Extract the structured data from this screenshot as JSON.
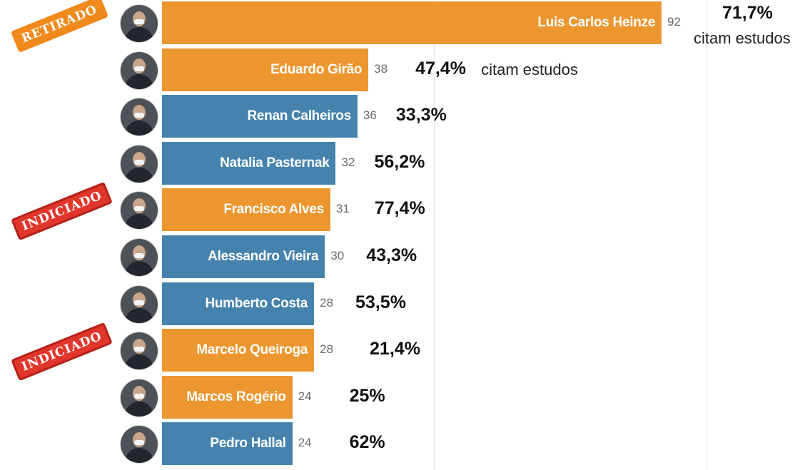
{
  "chart_data": {
    "type": "bar",
    "orientation": "horizontal",
    "title": "",
    "xlabel": "",
    "ylabel": "",
    "series": [
      {
        "values": [
          92,
          38,
          36,
          32,
          31,
          30,
          28,
          28,
          24,
          24
        ]
      }
    ],
    "categories": [
      "Luis Carlos Heinze",
      "Eduardo Girão",
      "Renan Calheiros",
      "Natalia Pasternak",
      "Francisco Alves",
      "Alessandro Vieira",
      "Humberto Costa",
      "Marcelo Queiroga",
      "Marcos Rogério",
      "Pedro Hallal"
    ],
    "values": [
      92,
      38,
      36,
      32,
      31,
      30,
      28,
      28,
      24,
      24
    ],
    "percent_labels": [
      "71,7%",
      "47,4%",
      "33,3%",
      "56,2%",
      "77,4%",
      "43,3%",
      "53,5%",
      "21,4%",
      "25%",
      "62%"
    ],
    "percent_note": "citam estudos",
    "bar_colors": [
      "#ec962f",
      "#ec962f",
      "#4583ae",
      "#4583ae",
      "#ec962f",
      "#4583ae",
      "#4583ae",
      "#ec962f",
      "#ec962f",
      "#4583ae"
    ],
    "xlim": [
      0,
      92
    ],
    "grid": true,
    "stamps": [
      {
        "row": 0,
        "text": "RETIRADO",
        "style": "orange"
      },
      {
        "row": 4,
        "text": "INDICIADO",
        "style": "red"
      },
      {
        "row": 7,
        "text": "INDICIADO",
        "style": "red"
      }
    ]
  }
}
